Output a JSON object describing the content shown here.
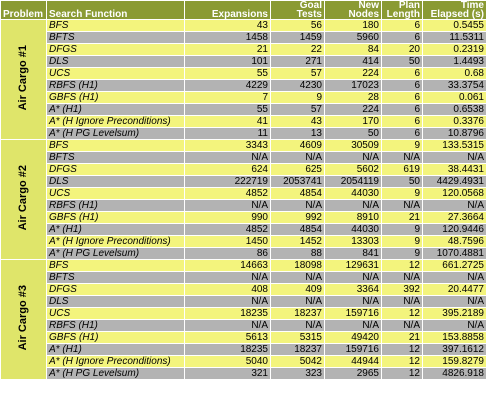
{
  "header": {
    "problem": "Problem",
    "search_function": "Search Function",
    "expansions": "Expansions",
    "goal_tests": "Goal Tests",
    "new_nodes": "New Nodes",
    "plan_length": "Plan Length",
    "time_elapsed": "Time Elapsed (s)"
  },
  "groups": [
    {
      "problem": "Air Cargo #1",
      "rows": [
        [
          "BFS",
          "43",
          "56",
          "180",
          "6",
          "0.5455"
        ],
        [
          "BFTS",
          "1458",
          "1459",
          "5960",
          "6",
          "11.5311"
        ],
        [
          "DFGS",
          "21",
          "22",
          "84",
          "20",
          "0.2319"
        ],
        [
          "DLS",
          "101",
          "271",
          "414",
          "50",
          "1.4493"
        ],
        [
          "UCS",
          "55",
          "57",
          "224",
          "6",
          "0.68"
        ],
        [
          "RBFS (H1)",
          "4229",
          "4230",
          "17023",
          "6",
          "33.3754"
        ],
        [
          "GBFS (H1)",
          "7",
          "9",
          "28",
          "6",
          "0.061"
        ],
        [
          "A* (H1)",
          "55",
          "57",
          "224",
          "6",
          "0.6538"
        ],
        [
          "A* (H Ignore Preconditions)",
          "41",
          "43",
          "170",
          "6",
          "0.3376"
        ],
        [
          "A* (H PG Levelsum)",
          "11",
          "13",
          "50",
          "6",
          "10.8796"
        ]
      ]
    },
    {
      "problem": "Air Cargo #2",
      "rows": [
        [
          "BFS",
          "3343",
          "4609",
          "30509",
          "9",
          "133.5315"
        ],
        [
          "BFTS",
          "N/A",
          "N/A",
          "N/A",
          "N/A",
          "N/A"
        ],
        [
          "DFGS",
          "624",
          "625",
          "5602",
          "619",
          "38.4431"
        ],
        [
          "DLS",
          "222719",
          "2053741",
          "2054119",
          "50",
          "4429.4931"
        ],
        [
          "UCS",
          "4852",
          "4854",
          "44030",
          "9",
          "120.0568"
        ],
        [
          "RBFS (H1)",
          "N/A",
          "N/A",
          "N/A",
          "N/A",
          "N/A"
        ],
        [
          "GBFS (H1)",
          "990",
          "992",
          "8910",
          "21",
          "27.3664"
        ],
        [
          "A* (H1)",
          "4852",
          "4854",
          "44030",
          "9",
          "120.9446"
        ],
        [
          "A* (H Ignore Preconditions)",
          "1450",
          "1452",
          "13303",
          "9",
          "48.7596"
        ],
        [
          "A* (H PG Levelsum)",
          "86",
          "88",
          "841",
          "9",
          "1070.4881"
        ]
      ]
    },
    {
      "problem": "Air Cargo #3",
      "rows": [
        [
          "BFS",
          "14663",
          "18098",
          "129631",
          "12",
          "661.2725"
        ],
        [
          "BFTS",
          "N/A",
          "N/A",
          "N/A",
          "N/A",
          "N/A"
        ],
        [
          "DFGS",
          "408",
          "409",
          "3364",
          "392",
          "20.4477"
        ],
        [
          "DLS",
          "N/A",
          "N/A",
          "N/A",
          "N/A",
          "N/A"
        ],
        [
          "UCS",
          "18235",
          "18237",
          "159716",
          "12",
          "395.2189"
        ],
        [
          "RBFS (H1)",
          "N/A",
          "N/A",
          "N/A",
          "N/A",
          "N/A"
        ],
        [
          "GBFS (H1)",
          "5613",
          "5315",
          "49420",
          "21",
          "153.8858"
        ],
        [
          "A* (H1)",
          "18235",
          "18237",
          "159716",
          "12",
          "397.1612"
        ],
        [
          "A* (H Ignore Preconditions)",
          "5040",
          "5042",
          "44944",
          "12",
          "159.8279"
        ],
        [
          "A* (H PG Levelsum)",
          "321",
          "323",
          "2965",
          "12",
          "4826.918"
        ]
      ]
    }
  ],
  "colors": {
    "header_bg": "#8a9a33",
    "problem_cell_bg": "#dfe56a",
    "row_yellow": "#f3f47d",
    "row_gray": "#b3b3b3"
  }
}
